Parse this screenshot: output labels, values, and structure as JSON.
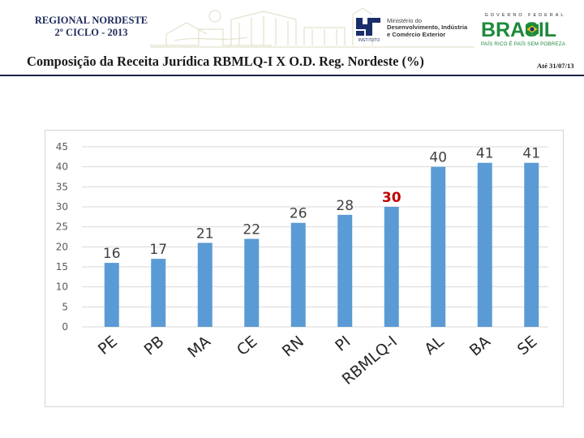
{
  "header": {
    "regional_line1": "REGIONAL NORDESTE",
    "regional_line2": "2º CICLO - 2013",
    "inpi_label": "INSTITUTO",
    "ministerio_line1": "Ministério do",
    "ministerio_line2": "Desenvolvimento, Indústria",
    "ministerio_line3": "e Comércio Exterior",
    "gov_small": "GOVERNO FEDERAL",
    "brasil_word": "BRASIL",
    "brasil_slogan": "PAÍS RICO É PAÍS SEM POBREZA"
  },
  "slide": {
    "title": "Composição da Receita Jurídica RBMLQ-I  X O.D. Reg. Nordeste (%)",
    "date_note": "Até 31/07/13"
  },
  "colors": {
    "bar": "#5b9bd5",
    "highlight_label": "#c00000",
    "label": "#404040",
    "axis_text": "#595959",
    "grid": "#d9d9d9"
  },
  "chart_data": {
    "type": "bar",
    "title": "",
    "xlabel": "",
    "ylabel": "",
    "ylim": [
      0,
      45
    ],
    "yticks": [
      0,
      5,
      10,
      15,
      20,
      25,
      30,
      35,
      40,
      45
    ],
    "grid": true,
    "categories": [
      "PE",
      "PB",
      "MA",
      "CE",
      "RN",
      "PI",
      "RBMLQ-I",
      "AL",
      "BA",
      "SE"
    ],
    "values": [
      16,
      17,
      21,
      22,
      26,
      28,
      30,
      40,
      41,
      41
    ],
    "highlight_category": "RBMLQ-I"
  }
}
